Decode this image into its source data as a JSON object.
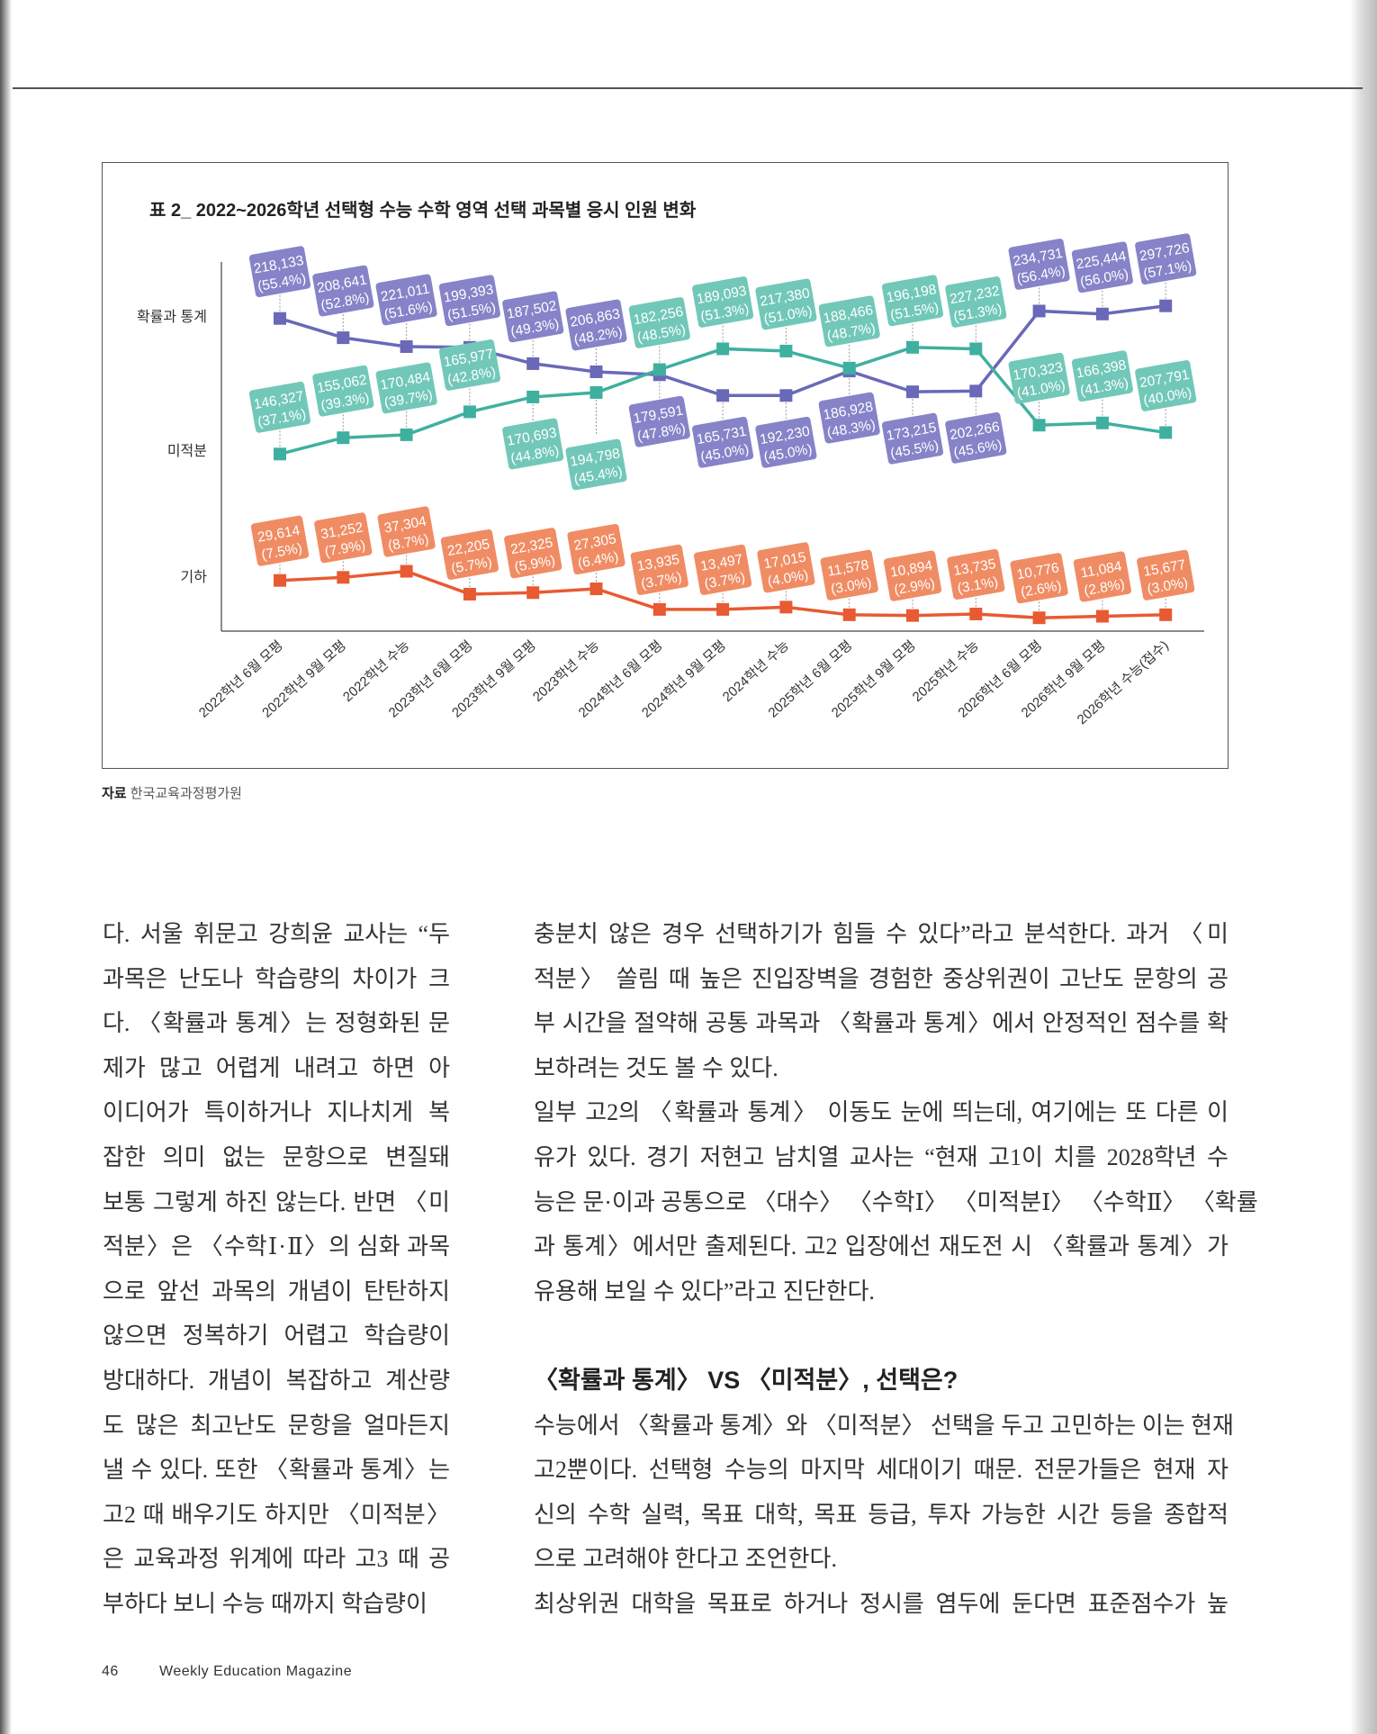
{
  "chart": {
    "title": "표 2_ 2022~2026학년 선택형 수능 수학 영역 선택 과목별 응시 인원 변화",
    "source_label": "자료",
    "source": "한국교육과정평가원"
  },
  "chart_data": {
    "type": "line",
    "title": "표 2_ 2022~2026학년 선택형 수능 수학 영역 선택 과목별 응시 인원 변화",
    "categories": [
      "2022학년 6월 모평",
      "2022학년 9월 모평",
      "2022학년 수능",
      "2023학년 6월 모평",
      "2023학년 9월 모평",
      "2023학년 수능",
      "2024학년 6월 모평",
      "2024학년 9월 모평",
      "2024학년 수능",
      "2025학년 6월 모평",
      "2025학년 9월 모평",
      "2025학년 수능",
      "2026학년 6월 모평",
      "2026학년 9월 모평",
      "2026학년 수능(접수)"
    ],
    "series": [
      {
        "name": "확률과 통계",
        "color": "#6a68b8",
        "box": "#8683c8",
        "values": [
          "218,133",
          "208,641",
          "221,011",
          "199,393",
          "187,502",
          "206,863",
          "179,591",
          "165,731",
          "192,230",
          "186,928",
          "173,215",
          "202,266",
          "234,731",
          "225,444",
          "297,726"
        ],
        "percent": [
          55.4,
          52.8,
          51.6,
          51.5,
          49.3,
          48.2,
          47.8,
          45.0,
          45.0,
          48.3,
          45.5,
          45.6,
          56.4,
          56.0,
          57.1
        ]
      },
      {
        "name": "미적분",
        "color": "#3fb0a0",
        "box": "#72c8b8",
        "values": [
          "146,327",
          "155,062",
          "170,484",
          "165,977",
          "170,693",
          "194,798",
          "182,256",
          "189,093",
          "217,380",
          "188,466",
          "196,198",
          "227,232",
          "170,323",
          "166,398",
          "207,791"
        ],
        "percent": [
          37.1,
          39.3,
          39.7,
          42.8,
          44.8,
          45.4,
          48.5,
          51.3,
          51.0,
          48.7,
          51.5,
          51.3,
          41.0,
          41.3,
          40.0
        ]
      },
      {
        "name": "기하",
        "color": "#e85a32",
        "box": "#f08c64",
        "values": [
          "29,614",
          "31,252",
          "37,304",
          "22,205",
          "22,325",
          "27,305",
          "13,935",
          "13,497",
          "17,015",
          "11,578",
          "10,894",
          "13,735",
          "10,776",
          "11,084",
          "15,677"
        ],
        "percent": [
          7.5,
          7.9,
          8.7,
          5.7,
          5.9,
          6.4,
          3.7,
          3.7,
          4.0,
          3.0,
          2.9,
          3.1,
          2.6,
          2.8,
          3.0
        ]
      }
    ],
    "xlabel": "",
    "ylabel": "",
    "grid": false,
    "legend": "none"
  },
  "article": {
    "left_lines": [
      "다. 서울 휘문고 강희윤 교사는 “두",
      "과목은 난도나 학습량의 차이가 크",
      "다. 〈확률과 통계〉는 정형화된 문",
      "제가 많고 어렵게 내려고 하면 아",
      "이디어가 특이하거나 지나치게 복",
      "잡한 의미 없는 문항으로 변질돼",
      "보통 그렇게 하진 않는다. 반면 〈미",
      "적분〉은 〈수학Ⅰ·Ⅱ〉의 심화 과목",
      "으로 앞선 과목의 개념이 탄탄하지",
      "않으면 정복하기 어렵고 학습량이",
      "방대하다. 개념이 복잡하고 계산량",
      "도 많은 최고난도 문항을 얼마든지",
      "낼 수 있다. 또한 〈확률과 통계〉는",
      "고2 때 배우기도 하지만 〈미적분〉",
      "은 교육과정 위계에 따라 고3 때 공",
      "부하다 보니 수능 때까지 학습량이"
    ],
    "right_lines": [
      "충분치 않은 경우 선택하기가 힘들 수 있다”라고 분석한다. 과거 〈미",
      "적분〉 쏠림 때 높은 진입장벽을 경험한 중상위권이 고난도 문항의 공",
      "부 시간을 절약해 공통 과목과 〈확률과 통계〉에서 안정적인 점수를 확",
      "보하려는 것도 볼 수 있다.",
      "일부 고2의 〈확률과 통계〉 이동도 눈에 띄는데, 여기에는 또 다른 이",
      "유가 있다. 경기 저현고 남치열 교사는 “현재 고1이 치를 2028학년 수",
      "능은 문·이과 공통으로 〈대수〉 〈수학Ⅰ〉 〈미적분Ⅰ〉 〈수학Ⅱ〉 〈확률",
      "과 통계〉에서만 출제된다. 고2 입장에선 재도전 시 〈확률과 통계〉가",
      "유용해 보일 수 있다”라고 진단한다."
    ],
    "heading": "〈확률과 통계〉 VS 〈미적분〉, 선택은?",
    "right_lines2": [
      "수능에서 〈확률과 통계〉와 〈미적분〉 선택을 두고 고민하는 이는 현재",
      "고2뿐이다. 선택형 수능의 마지막 세대이기 때문. 전문가들은 현재 자",
      "신의 수학 실력, 목표 대학, 목표 등급, 투자 가능한 시간 등을 종합적",
      "으로 고려해야 한다고 조언한다.",
      "최상위권 대학을 목표로 하거나 정시를 염두에 둔다면 표준점수가 높"
    ]
  },
  "footer": {
    "page_number": "46",
    "magazine": "Weekly Education Magazine"
  }
}
